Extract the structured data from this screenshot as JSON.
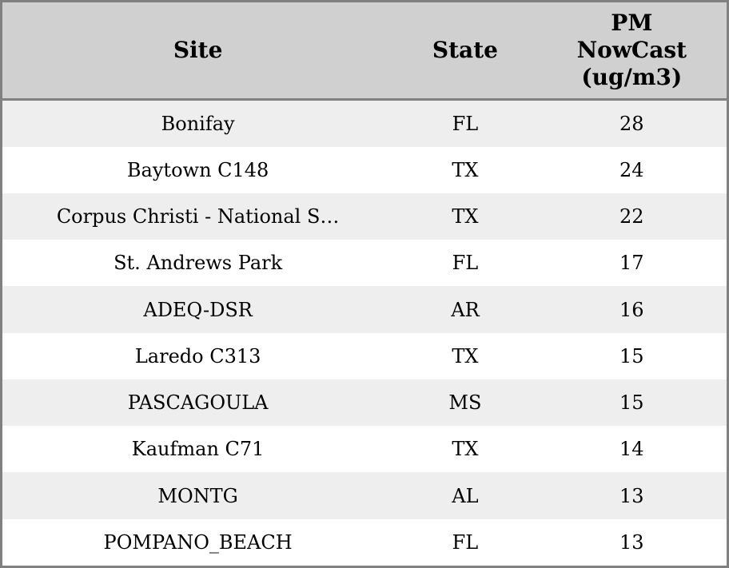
{
  "chart_data": {
    "type": "table",
    "title": "",
    "columns": [
      {
        "id": "site",
        "label": "Site"
      },
      {
        "id": "state",
        "label": "State"
      },
      {
        "id": "pm",
        "label": "PM NowCast (ug/m3)",
        "label_lines": [
          "PM",
          "NowCast",
          "(ug/m3)"
        ]
      }
    ],
    "rows": [
      {
        "site": "Bonifay",
        "state": "FL",
        "pm": 28
      },
      {
        "site": "Baytown C148",
        "state": "TX",
        "pm": 24
      },
      {
        "site": "Corpus Christi - National S…",
        "state": "TX",
        "pm": 22
      },
      {
        "site": "St. Andrews Park",
        "state": "FL",
        "pm": 17
      },
      {
        "site": "ADEQ-DSR",
        "state": "AR",
        "pm": 16
      },
      {
        "site": "Laredo C313",
        "state": "TX",
        "pm": 15
      },
      {
        "site": "PASCAGOULA",
        "state": "MS",
        "pm": 15
      },
      {
        "site": "Kaufman C71",
        "state": "TX",
        "pm": 14
      },
      {
        "site": "MONTG",
        "state": "AL",
        "pm": 13
      },
      {
        "site": "POMPANO_BEACH",
        "state": "FL",
        "pm": 13
      }
    ],
    "layout": {
      "striped": true,
      "first_row_striped": true,
      "header_lines_pm_column": 3
    }
  },
  "colors": {
    "border": "#808080",
    "header_bg": "#d0d0d0",
    "row_stripe": "#eeeeee",
    "row_alt": "#ffffff",
    "text": "#000000"
  }
}
